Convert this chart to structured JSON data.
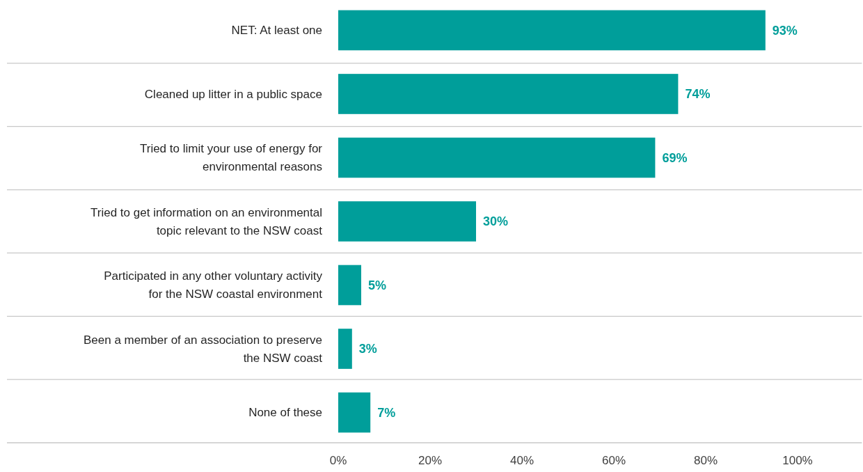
{
  "chart_data": {
    "type": "bar",
    "orientation": "horizontal",
    "categories": [
      "NET: At least one",
      "Cleaned up litter in a public space",
      "Tried to limit your use of energy for environmental reasons",
      "Tried to get information on an environmental topic relevant to the NSW coast",
      "Participated in any other voluntary activity for the NSW coastal environment",
      "Been a member of an association to preserve the NSW coast",
      "None of these"
    ],
    "values": [
      93,
      74,
      69,
      30,
      5,
      3,
      7
    ],
    "value_labels": [
      "93%",
      "74%",
      "69%",
      "30%",
      "5%",
      "3%",
      "7%"
    ],
    "color": "#009e9a",
    "xlim": [
      0,
      114
    ],
    "xticks": [
      {
        "value": 0,
        "label": "0%"
      },
      {
        "value": 20,
        "label": "20%"
      },
      {
        "value": 40,
        "label": "40%"
      },
      {
        "value": 60,
        "label": "60%"
      },
      {
        "value": 80,
        "label": "80%"
      },
      {
        "value": 100,
        "label": "100%"
      }
    ],
    "grid": false
  }
}
